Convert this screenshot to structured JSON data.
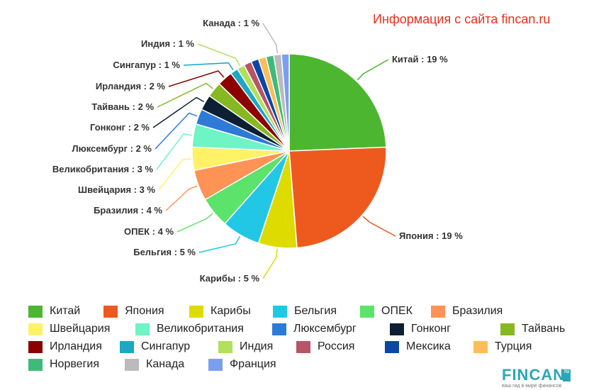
{
  "source_note": "Информация с сайта fincan.ru",
  "logo": {
    "wordmark": "FINCAN",
    "badge": "ru",
    "tagline": "ваш гид в мире финансов"
  },
  "chart_data": {
    "type": "pie",
    "grid": false,
    "legend_position": "bottom",
    "slices": [
      {
        "name": "Китай",
        "label": "Китай : 19 %",
        "value": 19,
        "color": "#4cb630"
      },
      {
        "name": "Япония",
        "label": "Япония : 19 %",
        "value": 19,
        "color": "#ee5a1e"
      },
      {
        "name": "Карибы",
        "label": "Карибы : 5 %",
        "value": 5,
        "color": "#dedb00"
      },
      {
        "name": "Бельгия",
        "label": "Бельгия : 5 %",
        "value": 5,
        "color": "#23c7e6"
      },
      {
        "name": "ОПЕК",
        "label": "ОПЕК : 4 %",
        "value": 4,
        "color": "#5ce36b"
      },
      {
        "name": "Бразилия",
        "label": "Бразилия : 4 %",
        "value": 4,
        "color": "#ff9355"
      },
      {
        "name": "Швейцария",
        "label": "Швейцария : 3 %",
        "value": 3,
        "color": "#fff266"
      },
      {
        "name": "Великобритания",
        "label": "Великобритания : 3 %",
        "value": 3,
        "color": "#6ff4c6"
      },
      {
        "name": "Люксембург",
        "label": "Люксембург : 2 %",
        "value": 2,
        "color": "#2e7ad7"
      },
      {
        "name": "Гонконг",
        "label": "Гонконг : 2 %",
        "value": 2,
        "color": "#0c1f33"
      },
      {
        "name": "Тайвань",
        "label": "Тайвань : 2 %",
        "value": 2,
        "color": "#86b821"
      },
      {
        "name": "Ирландия",
        "label": "Ирландия : 2 %",
        "value": 2,
        "color": "#8c0000"
      },
      {
        "name": "Сингапур",
        "label": "Сингапур : 1 %",
        "value": 1,
        "color": "#1aa8c4"
      },
      {
        "name": "Индия",
        "label": "Индия : 1 %",
        "value": 1,
        "color": "#b2df5c"
      },
      {
        "name": "Россия",
        "label": "",
        "value": 1,
        "color": "#b75468"
      },
      {
        "name": "Мексика",
        "label": "",
        "value": 1,
        "color": "#0a47a6"
      },
      {
        "name": "Турция",
        "label": "",
        "value": 1,
        "color": "#fdbd5a"
      },
      {
        "name": "Норвегия",
        "label": "",
        "value": 1,
        "color": "#3fbb78"
      },
      {
        "name": "Канада",
        "label": "Канада : 1 %",
        "value": 1,
        "color": "#bbbbbb"
      },
      {
        "name": "Франция",
        "label": "",
        "value": 1,
        "color": "#7b9ff0"
      }
    ]
  }
}
